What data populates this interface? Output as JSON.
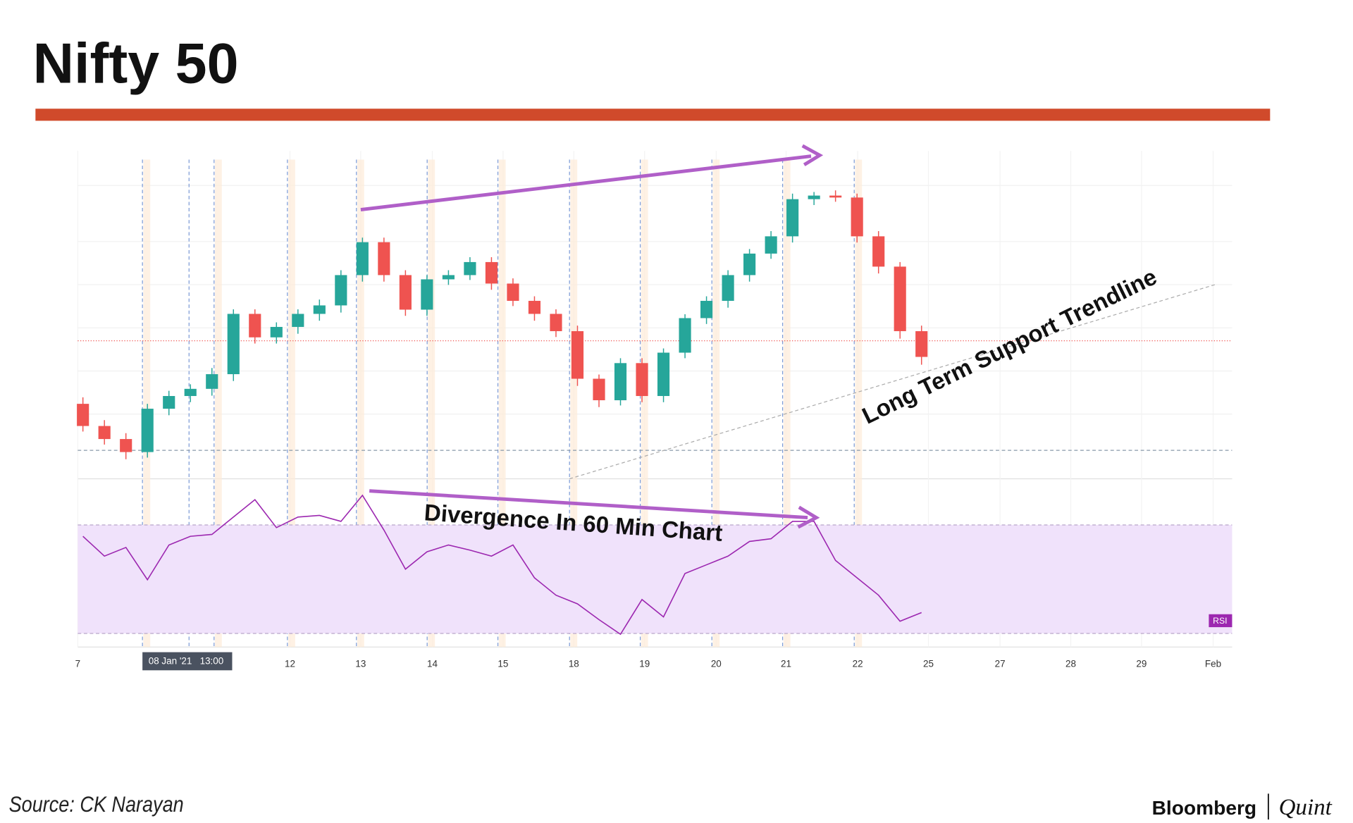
{
  "title": "Nifty 50",
  "source": "Source: CK Narayan",
  "logo": {
    "left": "Bloomberg",
    "right": "Quint"
  },
  "chart_data": {
    "type": "candlestick",
    "up_color": "#26a69a",
    "down_color": "#ef5350",
    "ylim": [
      13950,
      14850
    ],
    "open": [
      14180,
      14112,
      14072,
      14032,
      14165,
      14204,
      14226,
      14271,
      14456,
      14384,
      14416,
      14456,
      14482,
      14575,
      14676,
      14575,
      14469,
      14562,
      14575,
      14615,
      14549,
      14496,
      14456,
      14403,
      14257,
      14191,
      14305,
      14204,
      14337,
      14443,
      14496,
      14575,
      14641,
      14694,
      14808,
      14819,
      14813,
      14694,
      14601,
      14403
    ],
    "high": [
      14200,
      14130,
      14090,
      14180,
      14220,
      14240,
      14290,
      14470,
      14470,
      14430,
      14470,
      14500,
      14590,
      14690,
      14690,
      14590,
      14575,
      14590,
      14630,
      14630,
      14565,
      14510,
      14470,
      14420,
      14270,
      14320,
      14320,
      14350,
      14455,
      14510,
      14590,
      14655,
      14710,
      14825,
      14830,
      14835,
      14825,
      14710,
      14615,
      14420
    ],
    "low": [
      14095,
      14055,
      14010,
      14015,
      14145,
      14185,
      14205,
      14250,
      14365,
      14365,
      14395,
      14435,
      14460,
      14555,
      14555,
      14450,
      14450,
      14545,
      14560,
      14530,
      14480,
      14435,
      14385,
      14235,
      14170,
      14175,
      14185,
      14185,
      14320,
      14425,
      14475,
      14555,
      14625,
      14675,
      14790,
      14800,
      14675,
      14580,
      14380,
      14300
    ],
    "close": [
      14112,
      14072,
      14032,
      14165,
      14204,
      14226,
      14271,
      14456,
      14384,
      14416,
      14456,
      14482,
      14575,
      14676,
      14575,
      14469,
      14562,
      14575,
      14615,
      14549,
      14496,
      14456,
      14403,
      14257,
      14191,
      14305,
      14204,
      14337,
      14443,
      14496,
      14575,
      14641,
      14694,
      14808,
      14819,
      14813,
      14694,
      14601,
      14403,
      14324
    ],
    "x_labels": [
      "7",
      "12",
      "13",
      "14",
      "15",
      "18",
      "19",
      "20",
      "21",
      "22",
      "25",
      "27",
      "28",
      "29",
      "Feb"
    ],
    "crosshair_label": "08 Jan '21   13:00",
    "rsi": {
      "name": "RSI",
      "color": "#9c27b0",
      "ylim": [
        25,
        87
      ],
      "band": [
        30,
        70
      ],
      "values": [
        65.8,
        58.5,
        61.7,
        49.8,
        62.6,
        65.8,
        66.5,
        72.9,
        79.3,
        69,
        72.9,
        73.5,
        71.3,
        80.9,
        68.1,
        53.7,
        60.1,
        62.6,
        60.7,
        58.5,
        62.6,
        50.5,
        44.1,
        40.9,
        35.1,
        29.7,
        42.5,
        36.1,
        52.1,
        55.3,
        58.5,
        63.9,
        64.9,
        71.3,
        71.3,
        56.9,
        50.5,
        44.1,
        34.5,
        37.7
      ]
    },
    "annotations": [
      "Long Term Support Trendline",
      "Divergence In 60 Min Chart"
    ]
  }
}
